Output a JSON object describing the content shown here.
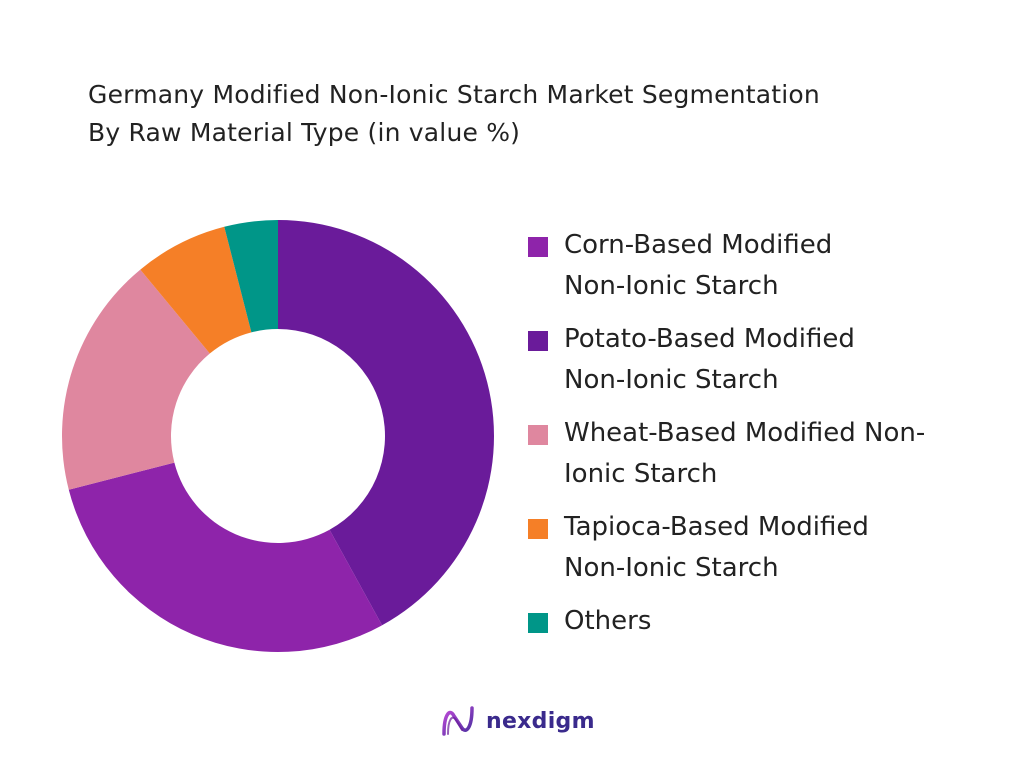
{
  "chart_data": {
    "type": "pie",
    "style": "donut",
    "title_lines": [
      "Germany Modified Non-Ionic Starch Market Segmentation",
      "By Raw Material Type (in value %)"
    ],
    "legend_placement": "right",
    "slices": [
      {
        "label": "Potato-Based Modified\nNon-Ionic Starch",
        "value": 42,
        "color": "#6a1b9a"
      },
      {
        "label": "Corn-Based Modified\nNon-Ionic Starch",
        "value": 29,
        "color": "#8e24aa"
      },
      {
        "label": "Wheat-Based Modified Non-\nIonic Starch",
        "value": 18,
        "color": "#df879f"
      },
      {
        "label": "Tapioca-Based Modified\nNon-Ionic Starch",
        "value": 7,
        "color": "#f57f27"
      },
      {
        "label": "Others",
        "value": 4,
        "color": "#009688"
      }
    ]
  },
  "legend": [
    {
      "label": "Corn-Based Modified\nNon-Ionic Starch",
      "color": "#8e24aa"
    },
    {
      "label": "Potato-Based Modified\nNon-Ionic Starch",
      "color": "#6a1b9a"
    },
    {
      "label": "Wheat-Based Modified Non-\nIonic Starch",
      "color": "#df879f"
    },
    {
      "label": "Tapioca-Based Modified\nNon-Ionic Starch",
      "color": "#f57f27"
    },
    {
      "label": "Others",
      "color": "#009688"
    }
  ],
  "brand": {
    "name": "nexdigm",
    "icon": "nexdigm-logo-icon"
  }
}
